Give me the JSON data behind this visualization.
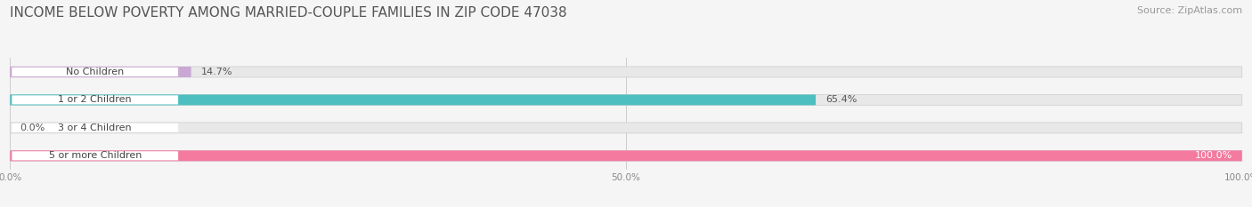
{
  "title": "INCOME BELOW POVERTY AMONG MARRIED-COUPLE FAMILIES IN ZIP CODE 47038",
  "source": "Source: ZipAtlas.com",
  "categories": [
    "No Children",
    "1 or 2 Children",
    "3 or 4 Children",
    "5 or more Children"
  ],
  "values": [
    14.7,
    65.4,
    0.0,
    100.0
  ],
  "bar_colors": [
    "#c9a8d4",
    "#4dbfc0",
    "#aab4e8",
    "#f47aa0"
  ],
  "bar_bg_color": "#e8e8e8",
  "xlim": [
    0,
    100
  ],
  "xtick_labels": [
    "0.0%",
    "50.0%",
    "100.0%"
  ],
  "xtick_vals": [
    0,
    50,
    100
  ],
  "title_fontsize": 11,
  "source_fontsize": 8,
  "label_fontsize": 8,
  "value_fontsize": 8,
  "background_color": "#f5f5f5",
  "figsize": [
    14.06,
    2.33
  ],
  "dpi": 100
}
